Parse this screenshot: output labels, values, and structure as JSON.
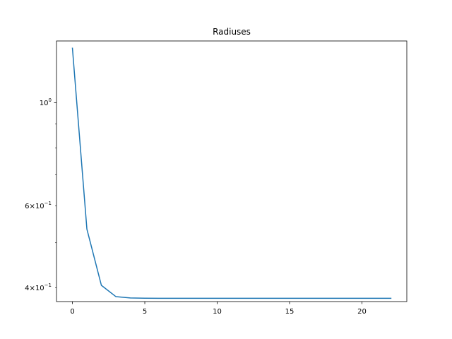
{
  "chart_data": {
    "type": "line",
    "title": "Radiuses",
    "xlabel": "",
    "ylabel": "",
    "x_scale": "linear",
    "y_scale": "log",
    "xlim": [
      -1.1,
      23.1
    ],
    "ylim": [
      0.3737,
      1.3578
    ],
    "grid": false,
    "x_ticks": [
      {
        "value": 0,
        "label": "0"
      },
      {
        "value": 5,
        "label": "5"
      },
      {
        "value": 10,
        "label": "10"
      },
      {
        "value": 15,
        "label": "15"
      },
      {
        "value": 20,
        "label": "20"
      }
    ],
    "y_major_ticks": [
      {
        "value": 1.0,
        "base": "10",
        "exp": "0"
      }
    ],
    "y_minor_ticks": [
      {
        "value": 0.4,
        "mantissa": "4",
        "base": "10",
        "exp": "−1"
      },
      {
        "value": 0.5
      },
      {
        "value": 0.6,
        "mantissa": "6",
        "base": "10",
        "exp": "−1"
      },
      {
        "value": 0.7
      },
      {
        "value": 0.8
      },
      {
        "value": 0.9
      }
    ],
    "series": [
      {
        "color": "#1f77b4",
        "x": [
          0,
          1,
          2,
          3,
          4,
          5,
          6,
          7,
          8,
          9,
          10,
          11,
          12,
          13,
          14,
          15,
          16,
          17,
          18,
          19,
          20,
          21,
          22
        ],
        "y": [
          1.31,
          0.535,
          0.405,
          0.383,
          0.3805,
          0.38,
          0.3798,
          0.3798,
          0.3798,
          0.3798,
          0.3798,
          0.3798,
          0.3798,
          0.3798,
          0.3798,
          0.3798,
          0.3798,
          0.3798,
          0.3798,
          0.3798,
          0.3798,
          0.3798,
          0.3798
        ]
      }
    ]
  }
}
